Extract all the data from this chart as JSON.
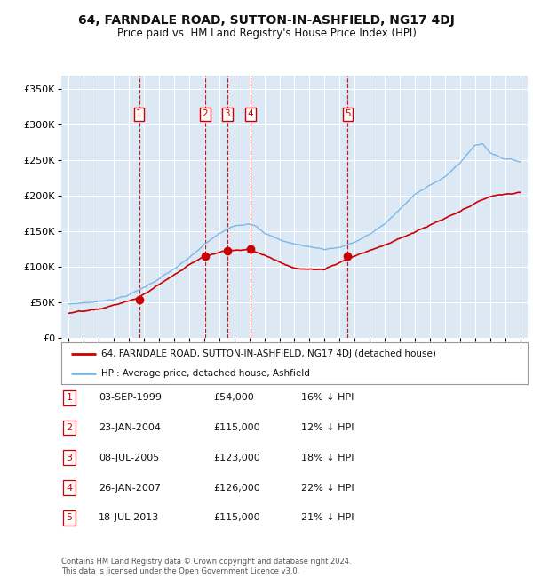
{
  "title": "64, FARNDALE ROAD, SUTTON-IN-ASHFIELD, NG17 4DJ",
  "subtitle": "Price paid vs. HM Land Registry's House Price Index (HPI)",
  "plot_bg_color": "#dce9f5",
  "transactions": [
    {
      "num": 1,
      "date": 1999.67,
      "price": 54000,
      "label": "03-SEP-1999",
      "pct": "16% ↓ HPI"
    },
    {
      "num": 2,
      "date": 2004.06,
      "price": 115000,
      "label": "23-JAN-2004",
      "pct": "12% ↓ HPI"
    },
    {
      "num": 3,
      "date": 2005.52,
      "price": 123000,
      "label": "08-JUL-2005",
      "pct": "18% ↓ HPI"
    },
    {
      "num": 4,
      "date": 2007.07,
      "price": 126000,
      "label": "26-JAN-2007",
      "pct": "22% ↓ HPI"
    },
    {
      "num": 5,
      "date": 2013.54,
      "price": 115000,
      "label": "18-JUL-2013",
      "pct": "21% ↓ HPI"
    }
  ],
  "hpi_color": "#7ab8e8",
  "sold_color": "#cc0000",
  "vline_color": "#cc0000",
  "xlim": [
    1994.5,
    2025.5
  ],
  "ylim": [
    0,
    370000
  ],
  "yticks": [
    0,
    50000,
    100000,
    150000,
    200000,
    250000,
    300000,
    350000
  ],
  "ytick_labels": [
    "£0",
    "£50K",
    "£100K",
    "£150K",
    "£200K",
    "£250K",
    "£300K",
    "£350K"
  ],
  "xticks": [
    1995,
    1996,
    1997,
    1998,
    1999,
    2000,
    2001,
    2002,
    2003,
    2004,
    2005,
    2006,
    2007,
    2008,
    2009,
    2010,
    2011,
    2012,
    2013,
    2014,
    2015,
    2016,
    2017,
    2018,
    2019,
    2020,
    2021,
    2022,
    2023,
    2024,
    2025
  ],
  "legend_label_sold": "64, FARNDALE ROAD, SUTTON-IN-ASHFIELD, NG17 4DJ (detached house)",
  "legend_label_hpi": "HPI: Average price, detached house, Ashfield",
  "footer": "Contains HM Land Registry data © Crown copyright and database right 2024.\nThis data is licensed under the Open Government Licence v3.0.",
  "table_rows": [
    [
      "1",
      "03-SEP-1999",
      "£54,000",
      "16% ↓ HPI"
    ],
    [
      "2",
      "23-JAN-2004",
      "£115,000",
      "12% ↓ HPI"
    ],
    [
      "3",
      "08-JUL-2005",
      "£123,000",
      "18% ↓ HPI"
    ],
    [
      "4",
      "26-JAN-2007",
      "£126,000",
      "22% ↓ HPI"
    ],
    [
      "5",
      "18-JUL-2013",
      "£115,000",
      "21% ↓ HPI"
    ]
  ],
  "hpi_knots_x": [
    1995,
    1996,
    1997,
    1998,
    1999,
    2000,
    2001,
    2002,
    2003,
    2004,
    2005,
    2006,
    2007,
    2007.5,
    2008,
    2009,
    2010,
    2011,
    2012,
    2013,
    2014,
    2015,
    2016,
    2017,
    2018,
    2019,
    2020,
    2021,
    2022,
    2022.5,
    2023,
    2024,
    2025
  ],
  "hpi_knots_y": [
    48000,
    50000,
    52000,
    56000,
    62000,
    72000,
    85000,
    98000,
    112000,
    130000,
    145000,
    155000,
    160000,
    158000,
    148000,
    138000,
    132000,
    128000,
    125000,
    128000,
    135000,
    145000,
    160000,
    180000,
    200000,
    215000,
    225000,
    245000,
    270000,
    272000,
    260000,
    252000,
    248000
  ],
  "sold_knots_x": [
    1995,
    1997,
    1999.67,
    2004.06,
    2005.52,
    2007.07,
    2008,
    2010,
    2012,
    2013.54,
    2015,
    2017,
    2019,
    2021,
    2023,
    2025
  ],
  "sold_knots_y": [
    35000,
    38000,
    54000,
    115000,
    123000,
    126000,
    118000,
    100000,
    98000,
    115000,
    128000,
    145000,
    163000,
    180000,
    200000,
    205000
  ]
}
